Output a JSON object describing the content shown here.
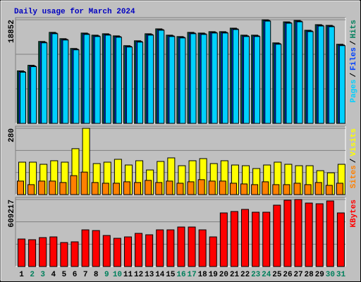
{
  "chart_data": [
    {
      "type": "bar",
      "title": "Daily usage for March 2024",
      "title_color": "#0000c0",
      "ylim": [
        0,
        18852
      ],
      "yticks": [
        18852
      ],
      "legend_separator": "/",
      "series": [
        {
          "name": "Hits",
          "color": "#00805c",
          "values": [
            9552,
            10571,
            14903,
            16559,
            15413,
            13629,
            16432,
            16050,
            16304,
            15922,
            14139,
            15030,
            16304,
            17196,
            16050,
            15795,
            16559,
            16432,
            16687,
            16687,
            17324,
            16050,
            16050,
            18852,
            14648,
            18470,
            18725,
            16941,
            17961,
            17833,
            14393
          ]
        },
        {
          "name": "Files",
          "color": "#0040ff",
          "values": [
            9420,
            10439,
            14771,
            16427,
            15281,
            13497,
            16300,
            15918,
            16172,
            15790,
            14007,
            14898,
            16172,
            17064,
            15918,
            15663,
            16427,
            16300,
            16555,
            16555,
            17192,
            15918,
            15918,
            18720,
            14516,
            18338,
            18593,
            16809,
            17829,
            17701,
            14261
          ]
        },
        {
          "name": "Pages",
          "color": "#00d0ff",
          "values": [
            9300,
            10319,
            14651,
            16307,
            15161,
            13377,
            16180,
            15798,
            16052,
            15670,
            13887,
            14778,
            16052,
            16944,
            15798,
            15543,
            16307,
            16180,
            16435,
            16435,
            17072,
            15798,
            15798,
            18600,
            14396,
            18218,
            18473,
            16689,
            17709,
            17581,
            14141
          ]
        }
      ]
    },
    {
      "type": "bar",
      "ylim": [
        0,
        280
      ],
      "yticks": [
        280
      ],
      "legend_separator": "/",
      "series": [
        {
          "name": "Visits",
          "color": "#ffff00",
          "values": [
            137,
            137,
            128,
            143,
            137,
            194,
            280,
            131,
            137,
            149,
            125,
            143,
            104,
            140,
            155,
            122,
            143,
            152,
            131,
            143,
            125,
            122,
            110,
            125,
            137,
            128,
            122,
            122,
            101,
            92,
            128
          ]
        },
        {
          "name": "Sites",
          "color": "#ff8000",
          "values": [
            57,
            42,
            57,
            57,
            51,
            80,
            95,
            51,
            48,
            48,
            54,
            51,
            60,
            51,
            57,
            48,
            54,
            63,
            57,
            57,
            48,
            45,
            42,
            54,
            42,
            42,
            48,
            42,
            51,
            39,
            48
          ]
        }
      ]
    },
    {
      "type": "bar",
      "ylim": [
        0,
        609217
      ],
      "yticks": [
        609217
      ],
      "categories": [
        "1",
        "2",
        "3",
        "4",
        "5",
        "6",
        "7",
        "8",
        "9",
        "10",
        "11",
        "12",
        "13",
        "14",
        "15",
        "16",
        "17",
        "18",
        "19",
        "20",
        "21",
        "22",
        "23",
        "24",
        "25",
        "26",
        "27",
        "28",
        "29",
        "30",
        "31"
      ],
      "category_colors": [
        "#000000",
        "#00805c",
        "#00805c",
        "#000000",
        "#000000",
        "#000000",
        "#000000",
        "#000000",
        "#00805c",
        "#00805c",
        "#000000",
        "#000000",
        "#000000",
        "#000000",
        "#000000",
        "#00805c",
        "#00805c",
        "#000000",
        "#000000",
        "#000000",
        "#000000",
        "#000000",
        "#00805c",
        "#00805c",
        "#000000",
        "#000000",
        "#000000",
        "#000000",
        "#000000",
        "#00805c",
        "#00805c"
      ],
      "series": [
        {
          "name": "KBytes",
          "color": "#ff0000",
          "values": [
            250107,
            243694,
            262933,
            269346,
            218042,
            224455,
            333476,
            327063,
            282172,
            256520,
            269346,
            301411,
            288585,
            333476,
            333476,
            359128,
            359128,
            333476,
            269346,
            487388,
            500214,
            519453,
            493801,
            493801,
            557931,
            602804,
            609217,
            577170,
            570757,
            596409,
            487388
          ]
        }
      ]
    }
  ]
}
